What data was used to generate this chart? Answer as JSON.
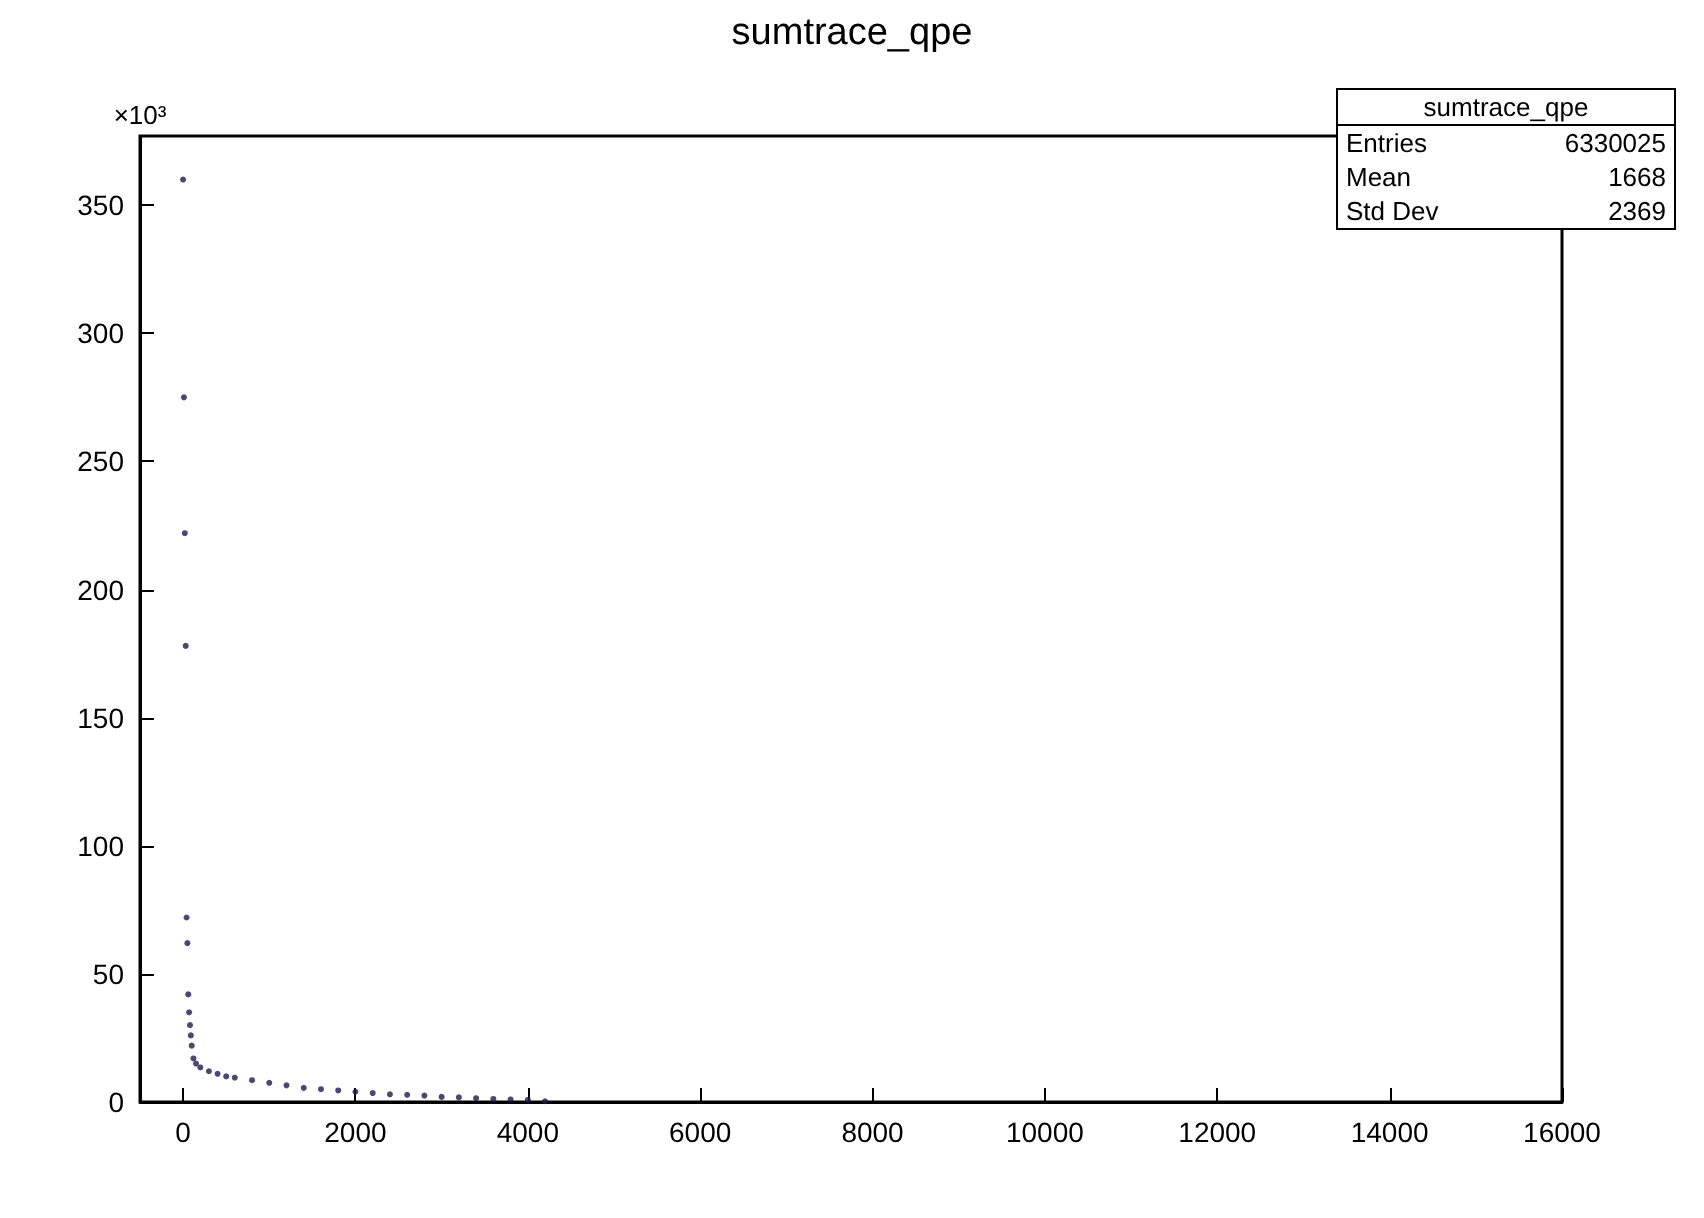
{
  "chart_data": {
    "type": "scatter",
    "title": "sumtrace_qpe",
    "ylabel": "×10³",
    "annotations": [
      "sumtrace_qpe",
      "Entries",
      "6330025",
      "Mean",
      "1668",
      "Std Dev",
      "2369"
    ],
    "xlim": [
      -500,
      16000
    ],
    "xticks": [
      0,
      2000,
      4000,
      6000,
      8000,
      10000,
      12000,
      14000,
      16000
    ],
    "ylim": [
      0,
      377
    ],
    "yticks": [
      0,
      50,
      100,
      150,
      200,
      250,
      300,
      350
    ],
    "grid": false,
    "marker": "circle",
    "series": [
      {
        "color": "#1a1a4e",
        "x": [
          0,
          10,
          20,
          30,
          40,
          50,
          60,
          70,
          80,
          90,
          100,
          120,
          150,
          200,
          300,
          400,
          500,
          600,
          800,
          1000,
          1200,
          1400,
          1600,
          1800,
          2000,
          2200,
          2400,
          2600,
          2800,
          3000,
          3200,
          3400,
          3600,
          3800,
          4000,
          4200
        ],
        "values": [
          360,
          275,
          222,
          178,
          72,
          62,
          42,
          35,
          30,
          26,
          22,
          17,
          15,
          13.5,
          12,
          11,
          10,
          9.5,
          8.5,
          7.5,
          6.5,
          5.5,
          5,
          4.5,
          4,
          3.5,
          3,
          2.8,
          2.5,
          2,
          1.8,
          1.5,
          1.2,
          1,
          0.8,
          0.3
        ]
      }
    ]
  }
}
